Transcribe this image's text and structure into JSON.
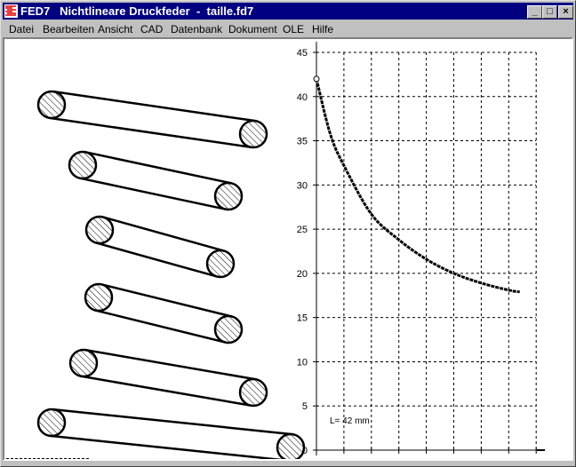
{
  "window": {
    "title": "FED7   Nichtlineare Druckfeder  -  taille.fd7",
    "buttons": {
      "minimize": "_",
      "maximize": "□",
      "close": "×"
    }
  },
  "menu": [
    {
      "label": "Datei"
    },
    {
      "label": "Bearbeiten"
    },
    {
      "label": "Ansicht"
    },
    {
      "label": "CAD"
    },
    {
      "label": "Datenbank"
    },
    {
      "label": "Dokument"
    },
    {
      "label": "OLE"
    },
    {
      "label": "Hilfe"
    }
  ],
  "drawing": {
    "length_label": "L= 42 mm"
  },
  "chart_data": {
    "type": "line",
    "title": "",
    "xlabel": "",
    "ylabel": "",
    "ylim": [
      0,
      45
    ],
    "yticks": [
      0,
      5,
      10,
      15,
      20,
      25,
      30,
      35,
      40,
      45
    ],
    "xlim": [
      0,
      8
    ],
    "grid": true,
    "x": [
      0,
      0.5,
      1,
      2,
      3,
      4,
      5,
      6,
      7,
      7.4
    ],
    "y": [
      42,
      35.8,
      32.2,
      26.7,
      23.8,
      21.6,
      20.0,
      18.9,
      18.1,
      17.9
    ]
  }
}
